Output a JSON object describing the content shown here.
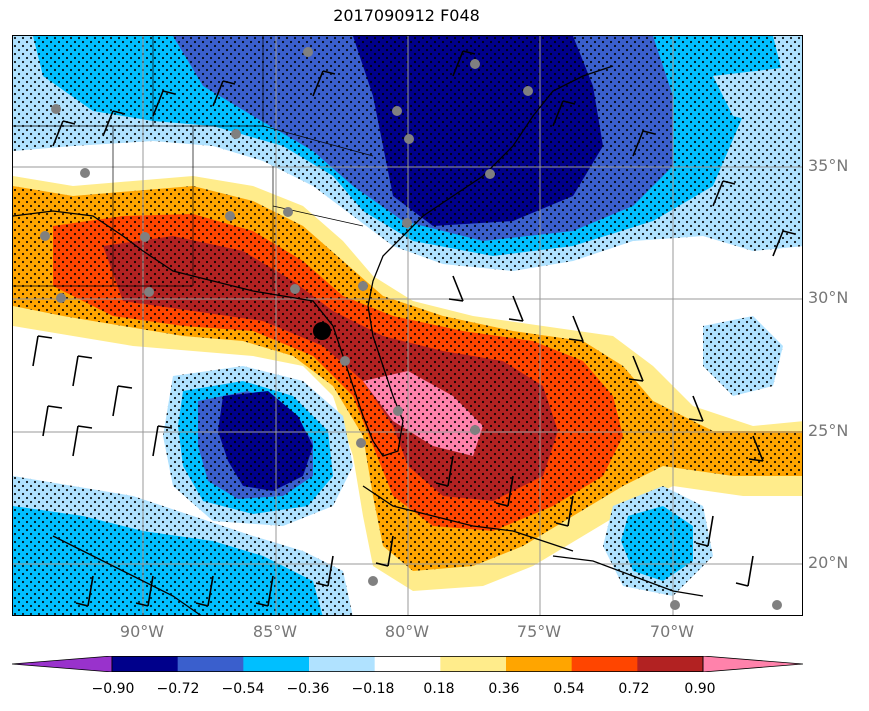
{
  "title": "2017090912 F048",
  "lat_labels": [
    "35°N",
    "30°N",
    "25°N",
    "20°N"
  ],
  "lon_labels": [
    "90°W",
    "85°W",
    "80°W",
    "75°W",
    "70°W"
  ],
  "colorbar": {
    "ticks": [
      "−0.90",
      "−0.72",
      "−0.54",
      "−0.36",
      "−0.18",
      "0.18",
      "0.36",
      "0.54",
      "0.72",
      "0.90"
    ],
    "colors": [
      "#9932CC",
      "#00008B",
      "#3A5FCD",
      "#00BFFF",
      "#B0E2FF",
      "#FFFFFF",
      "#FFEC8B",
      "#FFA500",
      "#FF4500",
      "#B22222",
      "#FF82AB"
    ]
  },
  "map_colors": {
    "land_border": "#000000",
    "grid": "#999999",
    "city_dot": "#808080",
    "storm_dot": "#000000"
  }
}
